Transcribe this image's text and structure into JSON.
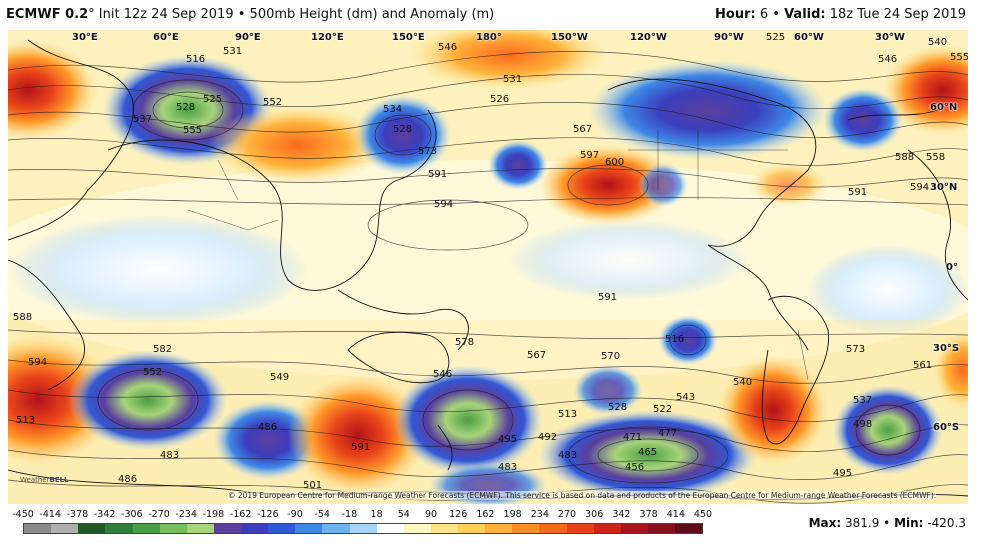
{
  "header": {
    "model": "ECMWF 0.2",
    "degree": "°",
    "init": "Init 12z 24 Sep 2019",
    "separator": "•",
    "product": "500mb Height (dm) and Anomaly (m)",
    "hour_label": "Hour:",
    "hour_value": "6",
    "valid_label": "Valid:",
    "valid_value": "18z Tue 24 Sep 2019"
  },
  "longitude_labels": [
    "30°E",
    "60°E",
    "90°E",
    "120°E",
    "150°E",
    "180°",
    "150°W",
    "120°W",
    "90°W",
    "60°W",
    "30°W"
  ],
  "latitude_labels": [
    "60°N",
    "30°N",
    "0°",
    "30°S",
    "60°S"
  ],
  "colors": {
    "ocean_background": "#fdf3c4",
    "land_lines": "#111111",
    "contour_lines": "#1a1a1a"
  },
  "anomaly_features": [
    {
      "kind": "ridge",
      "color": "#e03a1e",
      "value": "strong positive"
    },
    {
      "kind": "trough",
      "color": "#3a4fc2",
      "value": "strong negative"
    },
    {
      "kind": "deep trough",
      "color": "#2f8f3a",
      "value": "very strong negative"
    }
  ],
  "contour_labels": [
    "546",
    "531",
    "516",
    "528",
    "525",
    "537",
    "555",
    "552",
    "534",
    "528",
    "573",
    "591",
    "594",
    "597",
    "600",
    "567",
    "526",
    "531",
    "525",
    "546",
    "540",
    "555",
    "558",
    "588",
    "591",
    "594",
    "591",
    "588",
    "594",
    "582",
    "552",
    "549",
    "486",
    "483",
    "486",
    "483",
    "501",
    "495",
    "591",
    "578",
    "567",
    "570",
    "546",
    "513",
    "522",
    "528",
    "543",
    "471",
    "477",
    "465",
    "483",
    "492",
    "516",
    "573",
    "561",
    "537",
    "495",
    "498",
    "540",
    "513",
    "456"
  ],
  "copyright": "© 2019 European Centre for Medium-range Weather Forecasts (ECMWF). This service is based on data and products of the European Centre for Medium-range Weather Forecasts (ECMWF).",
  "watermark": {
    "brand": "Weather",
    "suffix": "BELL"
  },
  "scale": {
    "ticks": [
      "-450",
      "-414",
      "-378",
      "-342",
      "-306",
      "-270",
      "-234",
      "-198",
      "-162",
      "-126",
      "-90",
      "-54",
      "-18",
      "18",
      "54",
      "90",
      "126",
      "162",
      "198",
      "234",
      "270",
      "306",
      "342",
      "378",
      "414",
      "450"
    ],
    "colors": [
      "#8c8c8c",
      "#b0b0b0",
      "#1f5a24",
      "#2f7d36",
      "#4a9e45",
      "#78bd5e",
      "#a8d47a",
      "#5a3f9e",
      "#3b3ebd",
      "#2f58d6",
      "#3e87e6",
      "#6fb2f0",
      "#a6d4f7",
      "#ffffff",
      "#fff7c2",
      "#ffe48a",
      "#ffcf5c",
      "#ffb23a",
      "#ff8f26",
      "#fa6a1c",
      "#e8421a",
      "#cc2418",
      "#a8141c",
      "#86101e",
      "#5e0c18"
    ]
  },
  "stats": {
    "max_label": "Max:",
    "max_value": "381.9",
    "separator": "•",
    "min_label": "Min:",
    "min_value": "-420.3"
  }
}
